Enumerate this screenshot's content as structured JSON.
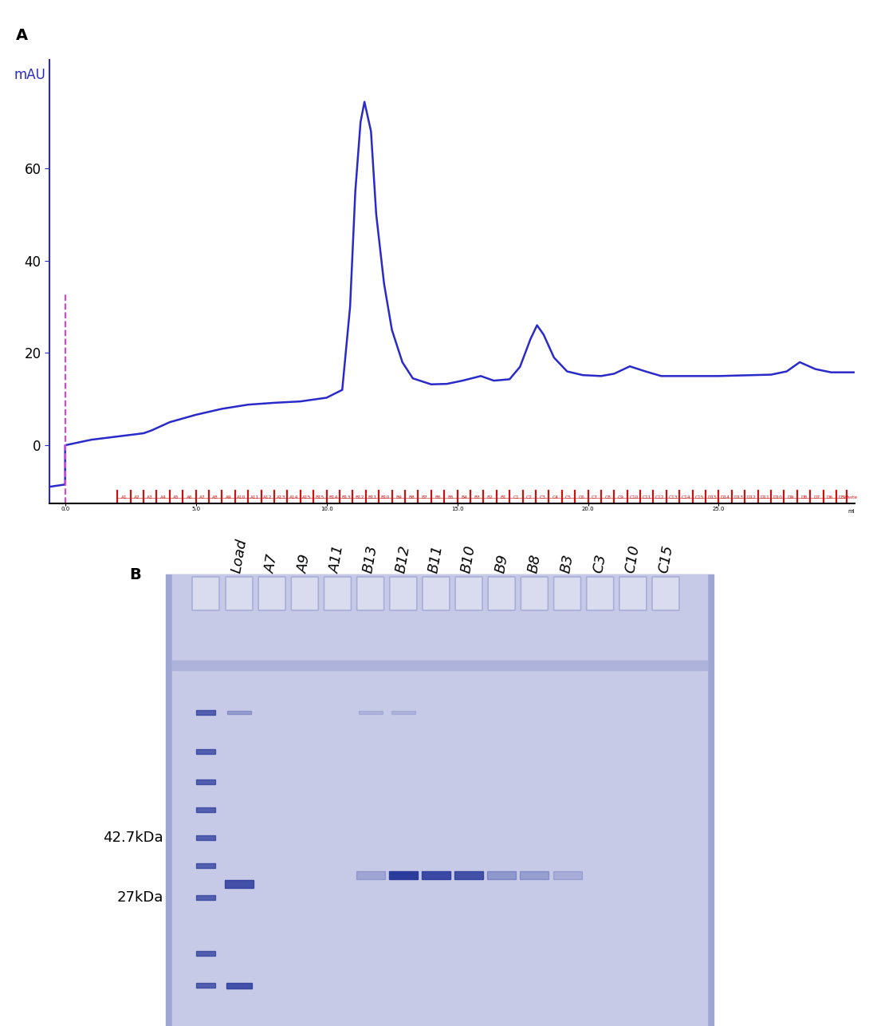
{
  "chart_data": {
    "type": "line",
    "panel_label": "A",
    "y_label": "mAU",
    "x_label": "ml",
    "x": [
      -0.6,
      0,
      0,
      0.5,
      1,
      2,
      3,
      3.3,
      4,
      5,
      6,
      7,
      8,
      9,
      10,
      10.6,
      10.9,
      11.1,
      11.3,
      11.45,
      11.7,
      11.9,
      12.2,
      12.5,
      12.9,
      13.3,
      14,
      14.6,
      15.2,
      15.9,
      16.4,
      17,
      17.4,
      17.8,
      18.05,
      18.3,
      18.7,
      19.2,
      19.8,
      20.5,
      21,
      21.6,
      22.2,
      22.8,
      25,
      27,
      27.6,
      28.1,
      28.7,
      29.3,
      30.2
    ],
    "values": [
      -9,
      -8.5,
      0,
      0.6,
      1.2,
      1.9,
      2.6,
      3.2,
      5,
      6.6,
      7.9,
      8.8,
      9.2,
      9.5,
      10.3,
      12,
      30,
      55,
      70,
      74.4,
      68,
      50,
      35,
      25,
      18,
      14.5,
      13.2,
      13.3,
      14,
      15,
      14,
      14.3,
      17,
      23,
      26,
      24,
      19,
      16,
      15.2,
      15,
      15.5,
      17.1,
      16,
      15,
      15,
      15.3,
      16,
      18,
      16.5,
      15.8,
      15.8
    ],
    "color": "#2a2ac8",
    "xlim": [
      -0.6,
      30.2
    ],
    "ylim": [
      -12.6,
      83.5
    ],
    "yticks": [
      0,
      20,
      40,
      60
    ],
    "xticks": [
      {
        "value": 0,
        "label": "0.0"
      },
      {
        "value": 5,
        "label": "5.0"
      },
      {
        "value": 10,
        "label": "10.0"
      },
      {
        "value": 15,
        "label": "15.0"
      },
      {
        "value": 20,
        "label": "20.0"
      },
      {
        "value": 25,
        "label": "25.0"
      }
    ],
    "grid": false,
    "injection_mark": {
      "x": 0,
      "top": 33,
      "color": "#e040e0",
      "line_style": "dashed"
    },
    "fractions": {
      "color": "#cc1111",
      "labels": [
        "A1",
        "A2",
        "A3",
        "A4",
        "A5",
        "A6",
        "A7",
        "A8",
        "A9",
        "A10",
        "A11",
        "A12",
        "A13",
        "A14",
        "A15",
        "B15",
        "B14",
        "B13",
        "B12",
        "B11",
        "B10",
        "B9",
        "B8",
        "B7",
        "B6",
        "B5",
        "B4",
        "B3",
        "B2",
        "B1",
        "C1",
        "C2",
        "C3",
        "C4",
        "C5",
        "C6",
        "C7",
        "C8",
        "C9",
        "C10",
        "C11",
        "C12",
        "C13",
        "C14",
        "C15",
        "D15",
        "D14",
        "D13",
        "D12",
        "D11",
        "D10",
        "D9",
        "D8",
        "D7",
        "D6",
        "D5",
        "Waste"
      ],
      "x": [
        2.0,
        2.5,
        3.0,
        3.5,
        4.0,
        4.5,
        5.0,
        5.5,
        6.0,
        6.5,
        7.0,
        7.5,
        8.0,
        8.5,
        9.0,
        9.5,
        10.0,
        10.5,
        11.0,
        11.5,
        12.0,
        12.5,
        13.0,
        13.5,
        14.0,
        14.5,
        15.0,
        15.5,
        16.0,
        16.5,
        17.0,
        17.5,
        18.0,
        18.5,
        19.0,
        19.5,
        20.0,
        20.5,
        21.0,
        21.5,
        22.0,
        22.5,
        23.0,
        23.5,
        24.0,
        24.5,
        25.0,
        25.5,
        26.0,
        26.5,
        27.0,
        27.5,
        28.0,
        28.5,
        29.0,
        29.5,
        29.9
      ]
    }
  },
  "gel": {
    "panel_label": "B",
    "lanes": [
      "Load",
      "A7",
      "A9",
      "A11",
      "B13",
      "B12",
      "B11",
      "B10",
      "B9",
      "B8",
      "B3",
      "C3",
      "C10",
      "C15"
    ],
    "marker_labels": [
      "42.7kDa",
      "27kDa"
    ],
    "main_band_intensity": [
      0.85,
      0,
      0,
      0,
      0.25,
      1.0,
      0.9,
      0.85,
      0.35,
      0.3,
      0.2,
      0,
      0,
      0
    ],
    "high_band_intensity": [
      0.3,
      0,
      0,
      0,
      0.15,
      0.15,
      0,
      0,
      0,
      0,
      0,
      0,
      0,
      0
    ]
  }
}
